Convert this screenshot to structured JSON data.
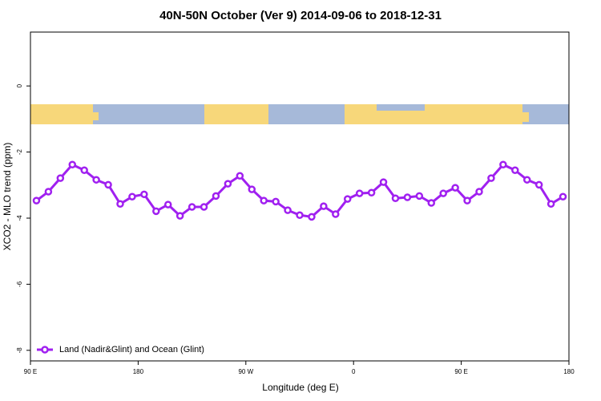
{
  "chart_data": {
    "type": "line",
    "title": "40N-50N October (Ver 9)   2014-09-06 to 2018-12-31",
    "x_label": "Longitude (deg E)",
    "y_label": "XCO2 - MLO trend (ppm)",
    "x": [
      95,
      105,
      115,
      125,
      135,
      145,
      155,
      165,
      175,
      185,
      195,
      205,
      215,
      225,
      235,
      245,
      255,
      265,
      275,
      285,
      295,
      305,
      315,
      325,
      335,
      345,
      355,
      365,
      375,
      385,
      395,
      405,
      415,
      425,
      435,
      445,
      455,
      465,
      475,
      485,
      495,
      505,
      515,
      525,
      535
    ],
    "series": [
      {
        "name": "Land (Nadir&Glint) and Ocean (Glint)",
        "color": "#a020f0",
        "values": [
          -3.47,
          -3.2,
          -2.79,
          -2.38,
          -2.55,
          -2.84,
          -2.99,
          -3.57,
          -3.35,
          -3.28,
          -3.79,
          -3.59,
          -3.93,
          -3.66,
          -3.66,
          -3.33,
          -2.96,
          -2.72,
          -3.13,
          -3.47,
          -3.5,
          -3.76,
          -3.91,
          -3.96,
          -3.64,
          -3.88,
          -3.42,
          -3.25,
          -3.23,
          -2.91,
          -3.4,
          -3.37,
          -3.33,
          -3.54,
          -3.25,
          -3.08,
          -3.47,
          -3.2,
          -2.79,
          -2.38,
          -2.55,
          -2.84,
          -2.99,
          -3.57,
          -3.35
        ]
      }
    ],
    "xlim": [
      90,
      540
    ],
    "xticks": [
      {
        "value": 90,
        "label": "90 E"
      },
      180,
      {
        "value": 270,
        "label": "90 W"
      },
      {
        "value": 360,
        "label": "0"
      },
      {
        "value": 450,
        "label": "90 E"
      },
      {
        "value": 540,
        "label": "180"
      }
    ],
    "ylim": [
      -8.32,
      1.63
    ],
    "yticks": [
      0,
      -2,
      -4,
      -6,
      -8
    ],
    "legend": "bottom-left"
  }
}
